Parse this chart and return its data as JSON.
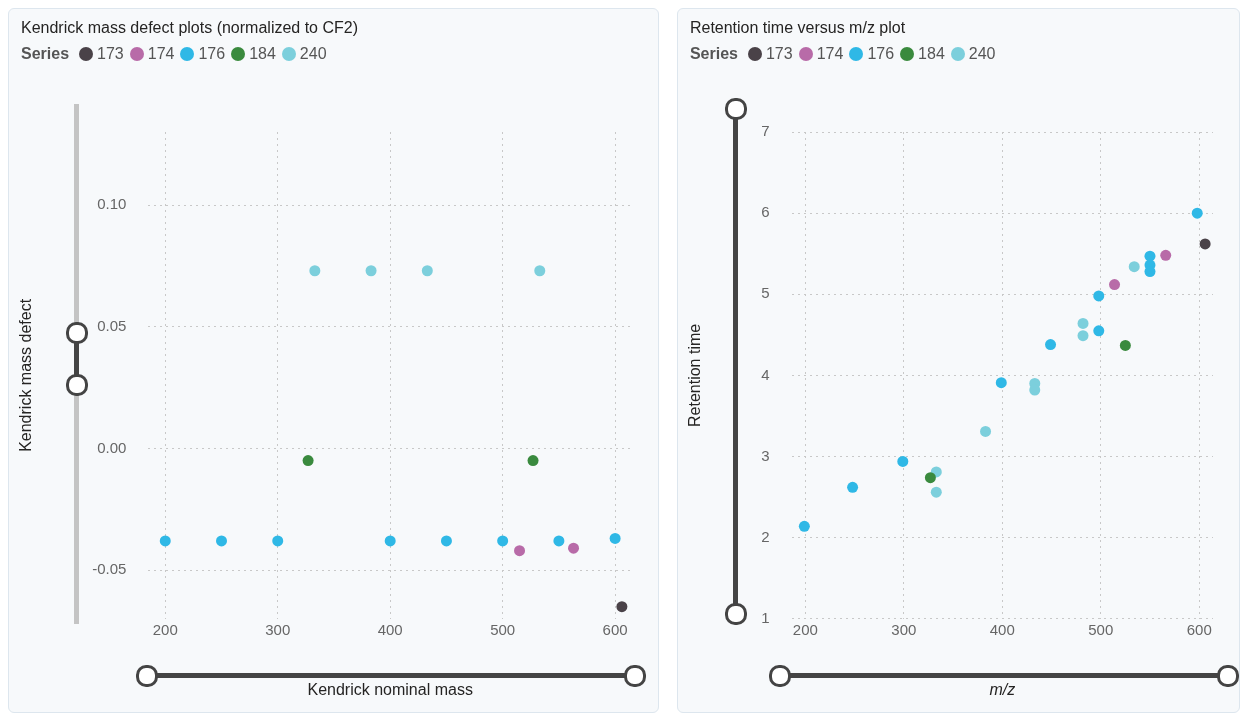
{
  "chart_data": [
    {
      "type": "scatter",
      "title": "Kendrick mass defect plots (normalized to CF2)",
      "legend_title": "Series",
      "xlabel": "Kendrick nominal mass",
      "ylabel": "Kendrick mass defect",
      "xlim": [
        185,
        615
      ],
      "ylim": [
        -0.07,
        0.13
      ],
      "xticks": [
        200,
        300,
        400,
        500,
        600
      ],
      "yticks": [
        {
          "value": -0.05,
          "label": "-0.05"
        },
        {
          "value": 0,
          "label": "0.00"
        },
        {
          "value": 0.05,
          "label": "0.05"
        },
        {
          "value": 0.1,
          "label": "0.10"
        }
      ],
      "grid": true,
      "legend": "top left",
      "marker": "circle",
      "series": [
        {
          "name": "173",
          "color": "#4a4248",
          "x": [
            606
          ],
          "values": [
            -0.065
          ]
        },
        {
          "name": "174",
          "color": "#b86ba8",
          "x": [
            515,
            563
          ],
          "values": [
            -0.042,
            -0.041
          ]
        },
        {
          "name": "176",
          "color": "#2fb8e6",
          "x": [
            200,
            250,
            300,
            400,
            450,
            500,
            550,
            600
          ],
          "values": [
            -0.038,
            -0.038,
            -0.038,
            -0.038,
            -0.038,
            -0.038,
            -0.038,
            -0.037
          ]
        },
        {
          "name": "184",
          "color": "#3a8a3e",
          "x": [
            327,
            527
          ],
          "values": [
            -0.005,
            -0.005
          ]
        },
        {
          "name": "240",
          "color": "#7ccfdc",
          "x": [
            333,
            383,
            433,
            533
          ],
          "values": [
            0.073,
            0.073,
            0.073,
            0.073
          ]
        }
      ]
    },
    {
      "type": "scatter",
      "title": "Retention time versus m/z plot",
      "legend_title": "Series",
      "xlabel": "m/z",
      "ylabel": "Retention time",
      "xlim": [
        186,
        614
      ],
      "ylim": [
        1,
        7
      ],
      "xticks": [
        200,
        300,
        400,
        500,
        600
      ],
      "yticks": [
        1,
        2,
        3,
        4,
        5,
        6,
        7
      ],
      "grid": true,
      "legend": "top left",
      "marker": "circle",
      "series": [
        {
          "name": "173",
          "color": "#4a4248",
          "x": [
            606
          ],
          "values": [
            5.62
          ]
        },
        {
          "name": "174",
          "color": "#b86ba8",
          "x": [
            514,
            566
          ],
          "values": [
            5.12,
            5.48
          ]
        },
        {
          "name": "176",
          "color": "#2fb8e6",
          "x": [
            199,
            248,
            299,
            399,
            449,
            498,
            498,
            550,
            550,
            550,
            598
          ],
          "values": [
            2.14,
            2.62,
            2.94,
            3.91,
            4.38,
            4.98,
            4.55,
            5.47,
            5.36,
            5.28,
            6.0
          ]
        },
        {
          "name": "184",
          "color": "#3a8a3e",
          "x": [
            327,
            525
          ],
          "values": [
            2.74,
            4.37
          ]
        },
        {
          "name": "240",
          "color": "#7ccfdc",
          "x": [
            333,
            333,
            383,
            433,
            433,
            482,
            482,
            534
          ],
          "values": [
            2.81,
            2.56,
            3.31,
            3.9,
            3.82,
            4.64,
            4.49,
            5.34
          ]
        }
      ]
    }
  ]
}
